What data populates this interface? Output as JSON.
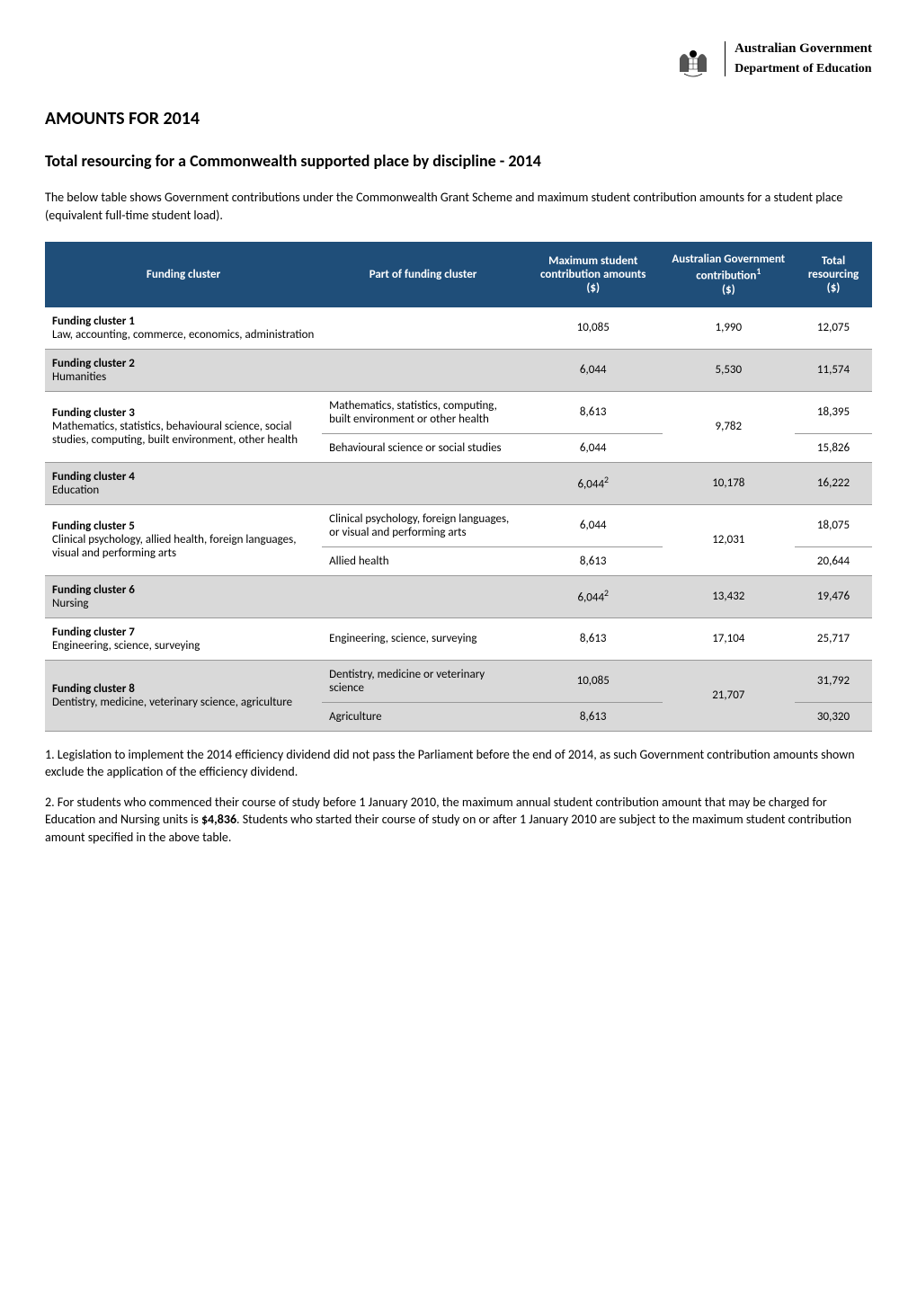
{
  "logo": {
    "line1": "Australian Government",
    "line2": "Department of Education"
  },
  "title": "AMOUNTS FOR 2014",
  "subtitle": "Total resourcing for a Commonwealth supported place by discipline - 2014",
  "intro": "The below table shows Government contributions under the Commonwealth Grant Scheme and maximum student contribution amounts for a student place (equivalent full-time student load).",
  "table": {
    "headers": {
      "col1": "Funding cluster",
      "col2": "Part of funding cluster",
      "col3_line1": "Maximum student contribution amounts",
      "col3_line2": "($)",
      "col4_line1": "Australian Government contribution",
      "col4_sup": "1",
      "col4_line2": "($)",
      "col5_line1": "Total resourcing",
      "col5_line2": "($)"
    },
    "styling": {
      "header_bg": "#1f4e79",
      "header_color": "#ffffff",
      "row_grey": "#d9d9d9",
      "row_white": "#ffffff",
      "border_color": "#999999",
      "font_size_pt": 13
    },
    "rows": [
      {
        "bg": "white",
        "cluster_bold": "Funding cluster 1",
        "cluster_desc": "Law, accounting, commerce, economics, administration",
        "part": "",
        "max_student": "10,085",
        "gov": "1,990",
        "total": "12,075"
      },
      {
        "bg": "grey",
        "cluster_bold": "Funding cluster 2",
        "cluster_desc": "Humanities",
        "part": "",
        "max_student": "6,044",
        "gov": "5,530",
        "total": "11,574"
      },
      {
        "bg": "white",
        "cluster_bold": "Funding cluster 3",
        "cluster_desc": "Mathematics, statistics, behavioural science, social studies, computing, built environment, other health",
        "part": "Mathematics, statistics, computing, built environment or other health",
        "max_student": "8,613",
        "gov": "9,782",
        "gov_rowspan": 2,
        "cluster_rowspan": 2,
        "total": "18,395"
      },
      {
        "bg": "white",
        "part": "Behavioural science or social studies",
        "max_student": "6,044",
        "total": "15,826"
      },
      {
        "bg": "grey",
        "cluster_bold": "Funding cluster 4",
        "cluster_desc": "Education",
        "part": "",
        "max_student": "6,044",
        "max_student_sup": "2",
        "gov": "10,178",
        "total": "16,222"
      },
      {
        "bg": "white",
        "cluster_bold": "Funding cluster 5",
        "cluster_desc": "Clinical psychology, allied health, foreign languages, visual and performing arts",
        "cluster_rowspan": 2,
        "part": "Clinical psychology, foreign languages, or visual and performing arts",
        "max_student": "6,044",
        "gov": "12,031",
        "gov_rowspan": 2,
        "total": "18,075"
      },
      {
        "bg": "white",
        "part": "Allied health",
        "max_student": "8,613",
        "total": "20,644"
      },
      {
        "bg": "grey",
        "cluster_bold": "Funding cluster 6",
        "cluster_desc": "Nursing",
        "part": "",
        "max_student": "6,044",
        "max_student_sup": "2",
        "gov": "13,432",
        "total": "19,476"
      },
      {
        "bg": "white",
        "cluster_bold": "Funding cluster 7",
        "cluster_desc": "Engineering, science, surveying",
        "part": "Engineering, science, surveying",
        "max_student": "8,613",
        "gov": "17,104",
        "total": "25,717"
      },
      {
        "bg": "grey",
        "cluster_bold": "Funding cluster 8",
        "cluster_desc": "Dentistry, medicine, veterinary science, agriculture",
        "cluster_rowspan": 2,
        "part": "Dentistry, medicine or veterinary science",
        "max_student": "10,085",
        "gov": "21,707",
        "gov_rowspan": 2,
        "total": "31,792"
      },
      {
        "bg": "grey",
        "part": "Agriculture",
        "max_student": "8,613",
        "total": "30,320"
      }
    ]
  },
  "footnotes": {
    "fn1": "1.  Legislation to implement the 2014 efficiency dividend did not pass the Parliament before the end of 2014, as such Government contribution amounts shown exclude the application of the efficiency dividend.",
    "fn2_part1": "2. For students who commenced their course of study before 1 January 2010, the maximum annual student contribution amount that may be charged for Education and Nursing units is ",
    "fn2_bold": "$4,836",
    "fn2_part2": ". Students who started their course of study on or after 1 January 2010 are subject to the maximum student contribution amount specified in the above table."
  }
}
